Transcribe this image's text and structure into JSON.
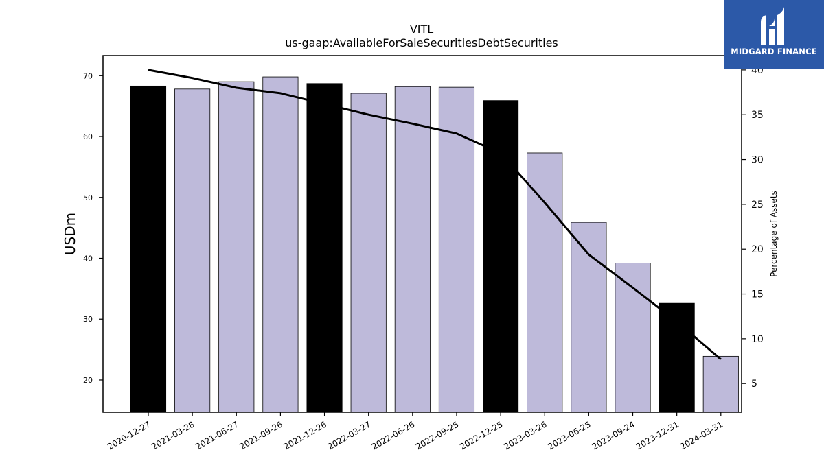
{
  "chart_data": {
    "type": "bar",
    "title": "VITL",
    "subtitle": "us-gaap:AvailableForSaleSecuritiesDebtSecurities",
    "ylabel": "USDm",
    "y2label": "Percentage of Assets",
    "categories": [
      "2020-12-27",
      "2021-03-28",
      "2021-06-27",
      "2021-09-26",
      "2021-12-26",
      "2022-03-27",
      "2022-06-26",
      "2022-09-25",
      "2022-12-25",
      "2023-03-26",
      "2023-06-25",
      "2023-09-24",
      "2023-12-31",
      "2024-03-31"
    ],
    "series": [
      {
        "values": [
          68.3,
          67.8,
          69.0,
          69.8,
          68.7,
          67.1,
          68.2,
          68.1,
          65.9,
          57.3,
          45.9,
          39.2,
          32.6,
          23.9
        ],
        "colors": [
          "#000000",
          "#bebada",
          "#bebada",
          "#bebada",
          "#000000",
          "#bebada",
          "#bebada",
          "#bebada",
          "#000000",
          "#bebada",
          "#bebada",
          "#bebada",
          "#000000",
          "#bebada"
        ]
      },
      {
        "type": "line",
        "values": [
          40.0,
          39.1,
          38.0,
          37.4,
          36.2,
          35.0,
          34.0,
          32.9,
          30.7,
          25.2,
          19.4,
          15.7,
          11.9,
          7.7
        ],
        "color": "#000000"
      }
    ],
    "ylim": [
      14.7,
      73.3
    ],
    "y2lim": [
      1.8,
      41.6
    ],
    "yticks": [
      20,
      30,
      40,
      50,
      60,
      70
    ],
    "y2ticks": [
      5,
      10,
      15,
      20,
      25,
      30,
      35,
      40
    ],
    "grid": false
  },
  "logo": {
    "text": "MIDGARD FINANCE",
    "bg": "#2c59a8"
  }
}
